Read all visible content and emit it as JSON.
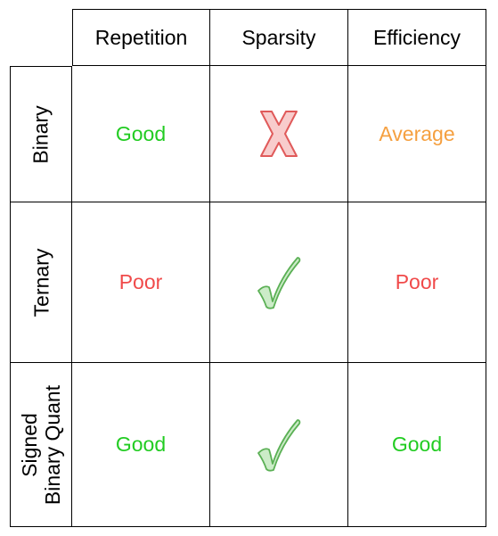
{
  "columns": [
    "Repetition",
    "Sparsity",
    "Efficiency"
  ],
  "rows": [
    {
      "label_lines": [
        "Binary"
      ],
      "repetition": {
        "text": "Good",
        "color": "#22cc22"
      },
      "sparsity": "cross",
      "efficiency": {
        "text": "Average",
        "color": "#f5a040"
      }
    },
    {
      "label_lines": [
        "Ternary"
      ],
      "repetition": {
        "text": "Poor",
        "color": "#f04a4a"
      },
      "sparsity": "check",
      "efficiency": {
        "text": "Poor",
        "color": "#f04a4a"
      }
    },
    {
      "label_lines": [
        "Signed",
        "Binary Quant"
      ],
      "repetition": {
        "text": "Good",
        "color": "#22cc22"
      },
      "sparsity": "check",
      "efficiency": {
        "text": "Good",
        "color": "#22cc22"
      }
    }
  ],
  "icons": {
    "cross": {
      "name": "cross-icon",
      "fill": "#f8cccc",
      "stroke": "#e05a5a"
    },
    "check": {
      "name": "check-icon",
      "fill": "#ccecc8",
      "stroke": "#5bb055"
    }
  }
}
